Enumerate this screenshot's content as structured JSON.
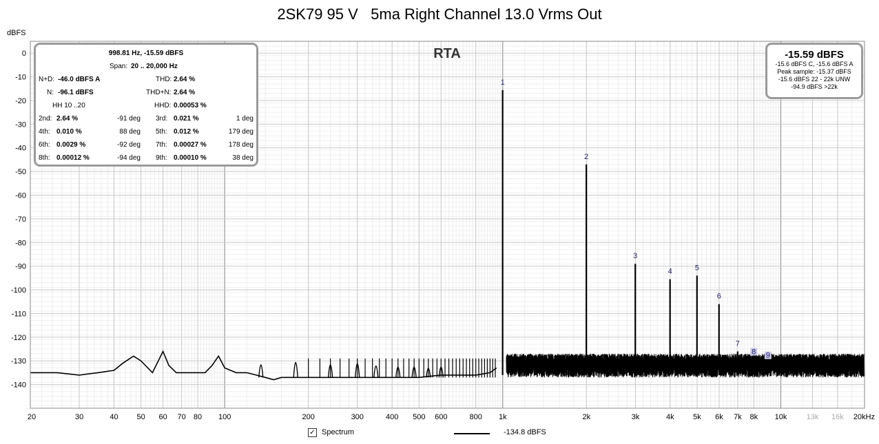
{
  "title": "2SK79 95 V   5ma Right Channel 13.0 Vrms Out",
  "measurements": {
    "header": "998.81 Hz, -15.59 dBFS",
    "span_label": "Span:",
    "span_value": "20 .. 20,000 Hz",
    "nd_label": "N+D:",
    "nd_value": "-46.0 dBFS A",
    "thd_label": "THD:",
    "thd_value": "2.64 %",
    "n_label": "N:",
    "n_value": "-96.1 dBFS",
    "thdn_label": "THD+N:",
    "thdn_value": "2.64 %",
    "hh_label": "HH 10 ..20",
    "hhd_label": "HHD:",
    "hhd_value": "0.00053 %",
    "harmonics": [
      {
        "label": "2nd:",
        "value": "2.64 %",
        "phase": "-91 deg"
      },
      {
        "label": "3rd:",
        "value": "0.021 %",
        "phase": "1 deg"
      },
      {
        "label": "4th:",
        "value": "0.010 %",
        "phase": "88 deg"
      },
      {
        "label": "5th:",
        "value": "0.012 %",
        "phase": "179 deg"
      },
      {
        "label": "6th:",
        "value": "0.0029 %",
        "phase": "-92 deg"
      },
      {
        "label": "7th:",
        "value": "0.00027 %",
        "phase": "178 deg"
      },
      {
        "label": "8th:",
        "value": "0.00012 %",
        "phase": "-94 deg"
      },
      {
        "label": "9th:",
        "value": "0.00010 %",
        "phase": "38 deg"
      }
    ]
  },
  "peak_box": {
    "value": "-15.59 dBFS",
    "lines": [
      "-15.6 dBFS C, -15.6 dBFS A",
      "Peak sample: -15.37 dBFS",
      "-15.6 dBFS 22 - 22k UNW",
      "-94.9 dBFS >22k"
    ]
  },
  "legend": {
    "checkbox_mark": "✓",
    "spectrum_label": "Spectrum",
    "line_value": "-134.8 dBFS"
  },
  "chart_data": {
    "type": "line",
    "title": "2SK79 95 V   5ma Right Channel 13.0 Vrms Out",
    "plot_label": "RTA",
    "ylabel": "dBFS",
    "xlabel": "",
    "x_scale": "log",
    "xlim": [
      20,
      20000
    ],
    "ylim": [
      -150,
      5
    ],
    "grid": true,
    "y_ticks": [
      0,
      -10,
      -20,
      -30,
      -40,
      -50,
      -60,
      -70,
      -80,
      -90,
      -100,
      -110,
      -120,
      -130,
      -140
    ],
    "y_tick_labels": [
      "0",
      "-10",
      "-20",
      "-30",
      "-40",
      "-50",
      "-60",
      "-70",
      "-80",
      "-90",
      "-100",
      "-110",
      "-120",
      "-130",
      "-140"
    ],
    "x_ticks": [
      20,
      30,
      40,
      50,
      60,
      70,
      80,
      100,
      200,
      300,
      400,
      500,
      600,
      800,
      1000,
      2000,
      3000,
      4000,
      5000,
      6000,
      7000,
      8000,
      10000,
      13000,
      16000,
      20000
    ],
    "x_tick_labels": [
      "20",
      "30",
      "40",
      "50",
      "60",
      "70",
      "80",
      "100",
      "200",
      "300",
      "400",
      "500",
      "600",
      "800",
      "1k",
      "2k",
      "3k",
      "4k",
      "5k",
      "6k",
      "7k",
      "8k",
      "10k",
      "13k",
      "16k",
      "20kHz"
    ],
    "x_tick_grey": [
      "13k",
      "16k"
    ],
    "series": [
      {
        "name": "Spectrum",
        "color": "#000000",
        "noise_floor_dBFS": -134.8,
        "low_freq_curve": [
          [
            20,
            -135
          ],
          [
            25,
            -135
          ],
          [
            30,
            -136
          ],
          [
            35,
            -135
          ],
          [
            40,
            -134
          ],
          [
            43,
            -131
          ],
          [
            47,
            -128
          ],
          [
            50,
            -130
          ],
          [
            55,
            -135
          ],
          [
            60,
            -126
          ],
          [
            63,
            -132
          ],
          [
            67,
            -135
          ],
          [
            75,
            -135
          ],
          [
            85,
            -135
          ],
          [
            90,
            -132
          ],
          [
            95,
            -128
          ],
          [
            100,
            -133
          ],
          [
            110,
            -135
          ],
          [
            120,
            -135
          ],
          [
            130,
            -136
          ],
          [
            140,
            -137
          ],
          [
            150,
            -138
          ],
          [
            160,
            -137
          ],
          [
            170,
            -137
          ],
          [
            180,
            -137
          ],
          [
            190,
            -137
          ],
          [
            200,
            -137
          ],
          [
            250,
            -137
          ],
          [
            300,
            -137
          ],
          [
            400,
            -137
          ],
          [
            500,
            -137
          ],
          [
            600,
            -136
          ],
          [
            700,
            -136
          ],
          [
            800,
            -136
          ],
          [
            900,
            -135
          ],
          [
            950,
            -133
          ]
        ],
        "hum_spikes": [
          [
            135,
            -128
          ],
          [
            180,
            -126
          ],
          [
            240,
            -128
          ],
          [
            300,
            -127
          ],
          [
            350,
            -129
          ],
          [
            420,
            -130
          ],
          [
            480,
            -130
          ],
          [
            540,
            -131
          ],
          [
            600,
            -130
          ]
        ],
        "harmonic_peaks": [
          {
            "label": "1",
            "freq": 999,
            "dBFS": -15.6
          },
          {
            "label": "2",
            "freq": 1998,
            "dBFS": -47
          },
          {
            "label": "3",
            "freq": 2997,
            "dBFS": -89
          },
          {
            "label": "4",
            "freq": 3996,
            "dBFS": -95.5
          },
          {
            "label": "5",
            "freq": 4995,
            "dBFS": -94
          },
          {
            "label": "6",
            "freq": 5994,
            "dBFS": -106
          },
          {
            "label": "7",
            "freq": 6993,
            "dBFS": -126
          },
          {
            "label": "8",
            "freq": 7992,
            "dBFS": -129.5
          },
          {
            "label": "9",
            "freq": 8991,
            "dBFS": -131
          }
        ]
      }
    ],
    "legend_position": "bottom-center"
  }
}
